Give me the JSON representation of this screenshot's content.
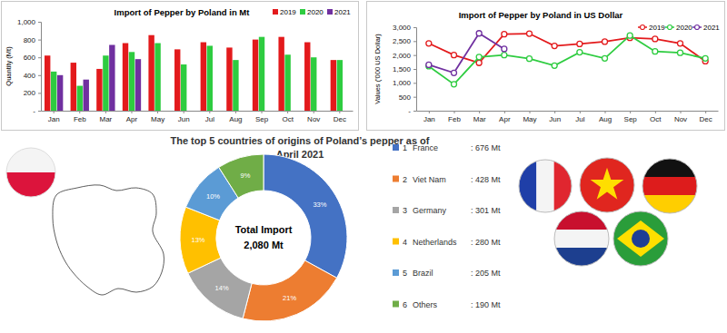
{
  "chart_data": [
    {
      "type": "bar",
      "title": "Import of Pepper by Poland in Mt",
      "y_label": "Quantity (Mt)",
      "categories": [
        "Jan",
        "Feb",
        "Mar",
        "Apr",
        "May",
        "Jun",
        "Jul",
        "Aug",
        "Sep",
        "Oct",
        "Nov",
        "Dec"
      ],
      "series": [
        {
          "name": "2019",
          "color": "#e31a1c",
          "values": [
            620,
            540,
            470,
            760,
            850,
            690,
            770,
            710,
            800,
            830,
            770,
            570
          ]
        },
        {
          "name": "2020",
          "color": "#2ecc40",
          "values": [
            440,
            280,
            620,
            660,
            760,
            520,
            730,
            570,
            830,
            630,
            600,
            570
          ]
        },
        {
          "name": "2021",
          "color": "#7030a0",
          "values": [
            400,
            350,
            740,
            580,
            null,
            null,
            null,
            null,
            null,
            null,
            null,
            null
          ]
        }
      ],
      "ylim": [
        0,
        1000
      ],
      "yticks": [
        {
          "value": 0,
          "label": "-"
        },
        200,
        400,
        600,
        800,
        {
          "value": 1000,
          "label": "1,000"
        }
      ],
      "grid": false,
      "legend": "top-right"
    },
    {
      "type": "line",
      "title": "Import of Pepper by Poland in US Dollar",
      "y_label": "Values ('000 US Dollar)",
      "categories": [
        "Jan",
        "Feb",
        "Mar",
        "Apr",
        "May",
        "Jun",
        "Jul",
        "Aug",
        "Sep",
        "Oct",
        "Nov",
        "Dec"
      ],
      "series": [
        {
          "name": "2019",
          "color": "#e31a1c",
          "values": [
            2420,
            2000,
            1720,
            2750,
            2770,
            2330,
            2400,
            2480,
            2620,
            2580,
            2420,
            1780
          ]
        },
        {
          "name": "2020",
          "color": "#2ecc40",
          "values": [
            1600,
            950,
            1930,
            2000,
            1870,
            1620,
            2100,
            1880,
            2700,
            2130,
            2080,
            1880
          ]
        },
        {
          "name": "2021",
          "color": "#7030a0",
          "values": [
            1650,
            1360,
            2780,
            2220,
            null,
            null,
            null,
            null,
            null,
            null,
            null,
            null
          ]
        }
      ],
      "ylim": [
        0,
        3000
      ],
      "yticks": [
        {
          "value": 0,
          "label": "-"
        },
        500,
        {
          "value": 1000,
          "label": "1,000"
        },
        {
          "value": 1500,
          "label": "1,500"
        },
        {
          "value": 2000,
          "label": "2,000"
        },
        {
          "value": 2500,
          "label": "2,500"
        },
        {
          "value": 3000,
          "label": "3,000"
        }
      ],
      "grid": false,
      "marker": "circle",
      "legend": "top-right"
    },
    {
      "type": "pie",
      "title": "The top 5 countries of origins of Poland’s pepper as of April 2021",
      "center_label": "Total Import",
      "total": {
        "value": 2080,
        "label": "2,080 Mt"
      },
      "categories": [
        "France",
        "Viet Nam",
        "Germany",
        "Netherlands",
        "Brazil",
        "Others"
      ],
      "values": [
        33,
        21,
        14,
        13,
        10,
        9
      ],
      "value_labels": [
        "33%",
        "21%",
        "14%",
        "13%",
        "10%",
        "9%"
      ],
      "colors": [
        "#4472c4",
        "#ed7d31",
        "#a5a5a5",
        "#ffc000",
        "#5b9bd5",
        "#70ad47"
      ],
      "ranks": [
        1,
        2,
        3,
        4,
        5,
        6
      ],
      "quantities": [
        676,
        428,
        301,
        280,
        205,
        190
      ],
      "quantity_labels": [
        ": 676 Mt",
        ": 428 Mt",
        ": 301 Mt",
        ": 280 Mt",
        ": 205 Mt",
        ": 190 Mt"
      ],
      "data_labels": true
    }
  ]
}
